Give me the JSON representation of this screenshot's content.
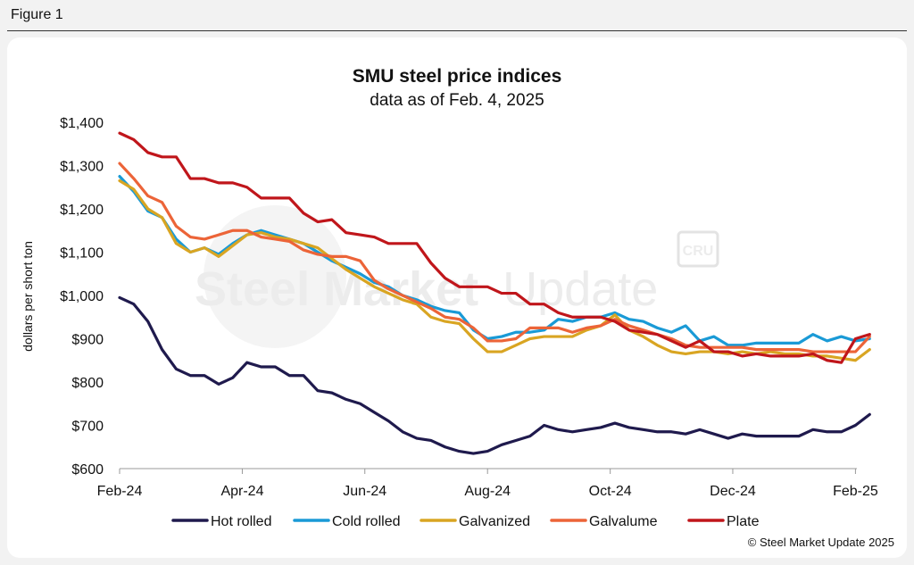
{
  "figure": {
    "label": "Figure 1"
  },
  "watermark": {
    "brand": "Steel Market Update",
    "brand_bold": "Steel Market",
    "brand_light": "Update",
    "badge": "CRU"
  },
  "footer": {
    "copyright": "© Steel Market Update 2025"
  },
  "colors": {
    "Hot rolled": "#1f1a4d",
    "Cold rolled": "#1a9ad6",
    "Galvanized": "#d9a522",
    "Galvalume": "#ec6438",
    "Plate": "#c0161b"
  },
  "chart_data": {
    "type": "line",
    "title": "SMU steel price indices",
    "subtitle": "data as of Feb. 4, 2025",
    "ylabel": "dollars per short ton",
    "xlabel": "",
    "ylim": [
      600,
      1400
    ],
    "yticks": [
      600,
      700,
      800,
      900,
      1000,
      1100,
      1200,
      1300,
      1400
    ],
    "ytick_labels": [
      "$600",
      "$700",
      "$800",
      "$900",
      "$1,000",
      "$1,100",
      "$1,200",
      "$1,300",
      "$1,400"
    ],
    "xticks": [
      0,
      8.57,
      17.14,
      25.71,
      34.29,
      42.86,
      51.43,
      60
    ],
    "xtick_labels": [
      "Feb-24",
      "Apr-24",
      "Jun-24",
      "Aug-24",
      "Oct-24",
      "Dec-24",
      "Feb-25"
    ],
    "xtick_label_positions": [
      0,
      8.57,
      17.14,
      25.71,
      34.29,
      42.86,
      51.43
    ],
    "xlim": [
      0,
      52.1
    ],
    "grid": false,
    "legend_position": "bottom",
    "series": [
      {
        "name": "Hot rolled",
        "values": [
          995,
          980,
          940,
          875,
          830,
          815,
          815,
          795,
          810,
          845,
          835,
          835,
          815,
          815,
          780,
          775,
          760,
          750,
          730,
          710,
          685,
          670,
          665,
          650,
          640,
          635,
          640,
          655,
          665,
          675,
          700,
          690,
          685,
          690,
          695,
          705,
          695,
          690,
          685,
          685,
          680,
          690,
          680,
          670,
          680,
          675,
          675,
          675,
          675,
          690,
          685,
          685,
          700,
          725
        ]
      },
      {
        "name": "Cold rolled",
        "values": [
          1275,
          1240,
          1195,
          1180,
          1130,
          1100,
          1110,
          1095,
          1120,
          1140,
          1150,
          1140,
          1130,
          1120,
          1100,
          1080,
          1065,
          1050,
          1030,
          1020,
          1000,
          990,
          975,
          965,
          960,
          920,
          900,
          905,
          915,
          915,
          920,
          945,
          940,
          950,
          950,
          960,
          945,
          940,
          925,
          915,
          930,
          895,
          905,
          885,
          885,
          890,
          890,
          890,
          890,
          910,
          895,
          905,
          895,
          900
        ]
      },
      {
        "name": "Galvanized",
        "values": [
          1265,
          1245,
          1200,
          1180,
          1120,
          1100,
          1110,
          1090,
          1115,
          1140,
          1145,
          1135,
          1130,
          1120,
          1110,
          1085,
          1060,
          1040,
          1020,
          1005,
          990,
          980,
          950,
          940,
          935,
          900,
          870,
          870,
          885,
          900,
          905,
          905,
          905,
          920,
          930,
          955,
          920,
          905,
          885,
          870,
          865,
          870,
          870,
          865,
          870,
          865,
          870,
          865,
          865,
          860,
          860,
          855,
          850,
          875
        ]
      },
      {
        "name": "Galvalume",
        "values": [
          1305,
          1270,
          1230,
          1215,
          1160,
          1135,
          1130,
          1140,
          1150,
          1150,
          1135,
          1130,
          1125,
          1105,
          1095,
          1090,
          1090,
          1080,
          1035,
          1015,
          1000,
          985,
          970,
          950,
          945,
          925,
          895,
          895,
          900,
          925,
          925,
          925,
          915,
          925,
          930,
          945,
          930,
          920,
          910,
          900,
          885,
          880,
          880,
          880,
          880,
          875,
          875,
          875,
          875,
          870,
          870,
          870,
          870,
          905
        ]
      },
      {
        "name": "Plate",
        "values": [
          1375,
          1360,
          1330,
          1320,
          1320,
          1270,
          1270,
          1260,
          1260,
          1250,
          1225,
          1225,
          1225,
          1190,
          1170,
          1175,
          1145,
          1140,
          1135,
          1120,
          1120,
          1120,
          1075,
          1040,
          1020,
          1020,
          1020,
          1005,
          1005,
          980,
          980,
          960,
          950,
          950,
          950,
          940,
          920,
          915,
          910,
          895,
          880,
          895,
          870,
          870,
          860,
          865,
          860,
          860,
          860,
          865,
          850,
          845,
          900,
          910
        ]
      }
    ]
  }
}
